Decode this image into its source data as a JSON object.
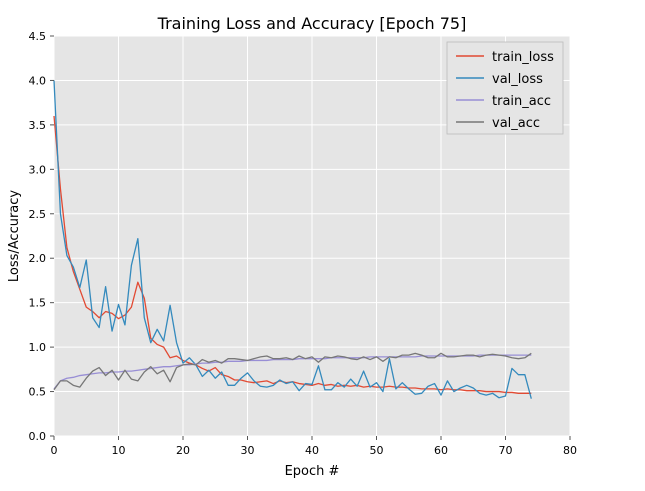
{
  "chart_data": {
    "type": "line",
    "title": "Training Loss and Accuracy [Epoch 75]",
    "xlabel": "Epoch #",
    "ylabel": "Loss/Accuracy",
    "xlim": [
      0,
      80
    ],
    "ylim": [
      0,
      4.5
    ],
    "xticks": [
      "0",
      "10",
      "20",
      "30",
      "40",
      "50",
      "60",
      "70",
      "80"
    ],
    "yticks": [
      "0.0",
      "0.5",
      "1.0",
      "1.5",
      "2.0",
      "2.5",
      "3.0",
      "3.5",
      "4.0",
      "4.5"
    ],
    "grid": true,
    "legend_position": "top-right",
    "background": "#e5e5e5",
    "x": [
      0,
      1,
      2,
      3,
      4,
      5,
      6,
      7,
      8,
      9,
      10,
      11,
      12,
      13,
      14,
      15,
      16,
      17,
      18,
      19,
      20,
      21,
      22,
      23,
      24,
      25,
      26,
      27,
      28,
      29,
      30,
      31,
      32,
      33,
      34,
      35,
      36,
      37,
      38,
      39,
      40,
      41,
      42,
      43,
      44,
      45,
      46,
      47,
      48,
      49,
      50,
      51,
      52,
      53,
      54,
      55,
      56,
      57,
      58,
      59,
      60,
      61,
      62,
      63,
      64,
      65,
      66,
      67,
      68,
      69,
      70,
      71,
      72,
      73,
      74
    ],
    "series": [
      {
        "name": "train_loss",
        "color": "#e24a33",
        "values": [
          3.6,
          2.78,
          2.12,
          1.85,
          1.65,
          1.45,
          1.4,
          1.33,
          1.4,
          1.38,
          1.32,
          1.36,
          1.45,
          1.73,
          1.55,
          1.1,
          1.03,
          1.0,
          0.88,
          0.9,
          0.85,
          0.82,
          0.8,
          0.76,
          0.73,
          0.77,
          0.69,
          0.67,
          0.63,
          0.63,
          0.61,
          0.6,
          0.61,
          0.62,
          0.59,
          0.62,
          0.6,
          0.61,
          0.59,
          0.58,
          0.57,
          0.59,
          0.57,
          0.58,
          0.56,
          0.57,
          0.56,
          0.57,
          0.55,
          0.56,
          0.55,
          0.55,
          0.56,
          0.55,
          0.55,
          0.54,
          0.54,
          0.53,
          0.53,
          0.53,
          0.52,
          0.53,
          0.52,
          0.52,
          0.51,
          0.51,
          0.51,
          0.5,
          0.5,
          0.5,
          0.49,
          0.49,
          0.48,
          0.48,
          0.48
        ]
      },
      {
        "name": "val_loss",
        "color": "#348abd",
        "values": [
          4.0,
          2.5,
          2.03,
          1.9,
          1.67,
          1.98,
          1.33,
          1.22,
          1.68,
          1.18,
          1.48,
          1.25,
          1.92,
          2.22,
          1.33,
          1.05,
          1.2,
          1.07,
          1.47,
          1.05,
          0.82,
          0.88,
          0.8,
          0.67,
          0.74,
          0.65,
          0.72,
          0.57,
          0.57,
          0.65,
          0.71,
          0.62,
          0.56,
          0.55,
          0.57,
          0.63,
          0.59,
          0.61,
          0.51,
          0.59,
          0.58,
          0.79,
          0.52,
          0.52,
          0.6,
          0.55,
          0.64,
          0.56,
          0.73,
          0.55,
          0.6,
          0.5,
          0.87,
          0.53,
          0.6,
          0.53,
          0.47,
          0.48,
          0.56,
          0.59,
          0.46,
          0.62,
          0.5,
          0.54,
          0.57,
          0.54,
          0.48,
          0.46,
          0.48,
          0.43,
          0.45,
          0.76,
          0.69,
          0.69,
          0.42
        ]
      },
      {
        "name": "train_acc",
        "color": "#988ed5",
        "values": [
          0.53,
          0.62,
          0.65,
          0.66,
          0.68,
          0.69,
          0.7,
          0.71,
          0.71,
          0.72,
          0.72,
          0.73,
          0.73,
          0.74,
          0.75,
          0.76,
          0.77,
          0.78,
          0.78,
          0.79,
          0.8,
          0.8,
          0.81,
          0.82,
          0.82,
          0.83,
          0.83,
          0.84,
          0.84,
          0.84,
          0.85,
          0.85,
          0.85,
          0.85,
          0.86,
          0.86,
          0.86,
          0.86,
          0.87,
          0.87,
          0.87,
          0.87,
          0.87,
          0.88,
          0.88,
          0.88,
          0.88,
          0.88,
          0.88,
          0.89,
          0.89,
          0.89,
          0.89,
          0.89,
          0.89,
          0.89,
          0.89,
          0.9,
          0.9,
          0.9,
          0.9,
          0.9,
          0.9,
          0.9,
          0.9,
          0.9,
          0.91,
          0.91,
          0.91,
          0.91,
          0.91,
          0.91,
          0.91,
          0.91,
          0.91
        ]
      },
      {
        "name": "val_acc",
        "color": "#777777",
        "values": [
          0.52,
          0.62,
          0.62,
          0.57,
          0.55,
          0.65,
          0.73,
          0.77,
          0.68,
          0.74,
          0.63,
          0.74,
          0.64,
          0.62,
          0.72,
          0.78,
          0.7,
          0.74,
          0.61,
          0.77,
          0.8,
          0.81,
          0.8,
          0.86,
          0.83,
          0.85,
          0.82,
          0.87,
          0.87,
          0.86,
          0.85,
          0.87,
          0.89,
          0.9,
          0.87,
          0.87,
          0.88,
          0.86,
          0.9,
          0.87,
          0.89,
          0.83,
          0.89,
          0.88,
          0.9,
          0.89,
          0.87,
          0.86,
          0.89,
          0.86,
          0.89,
          0.84,
          0.89,
          0.88,
          0.91,
          0.91,
          0.93,
          0.91,
          0.88,
          0.88,
          0.93,
          0.89,
          0.89,
          0.9,
          0.91,
          0.91,
          0.89,
          0.91,
          0.92,
          0.91,
          0.9,
          0.88,
          0.87,
          0.88,
          0.93
        ]
      }
    ]
  }
}
